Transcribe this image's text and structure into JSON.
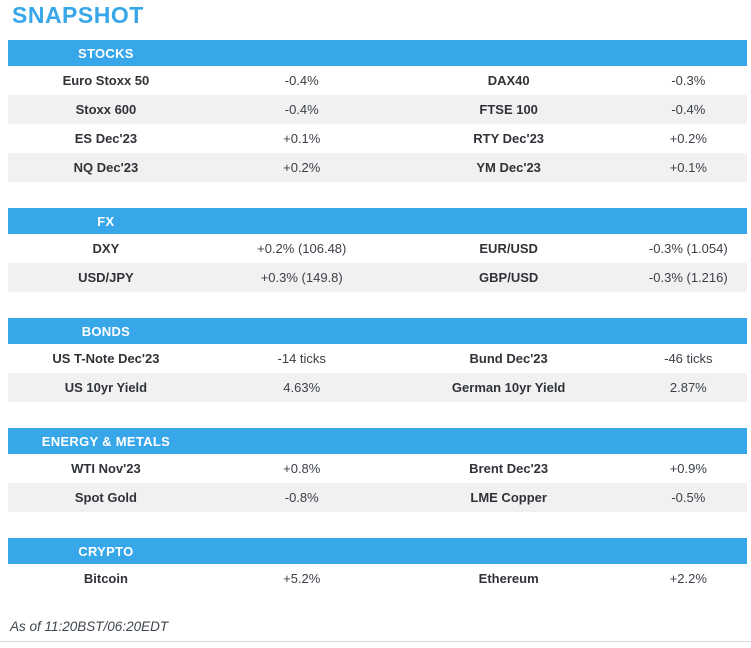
{
  "title": "SNAPSHOT",
  "footer": "As of 11:20BST/06:20EDT",
  "colors": {
    "accent_blue": "#38A7EA",
    "row_alt_gray": "#F1F1F2",
    "header_text": "#FFFFFF",
    "body_text": "#3B4048"
  },
  "sections": [
    {
      "header": "STOCKS",
      "rows": [
        {
          "label1": "Euro Stoxx 50",
          "value1": "-0.4%",
          "label2": "DAX40",
          "value2": "-0.3%"
        },
        {
          "label1": "Stoxx 600",
          "value1": "-0.4%",
          "label2": "FTSE 100",
          "value2": "-0.4%"
        },
        {
          "label1": "ES Dec'23",
          "value1": "+0.1%",
          "label2": "RTY Dec'23",
          "value2": "+0.2%"
        },
        {
          "label1": "NQ Dec'23",
          "value1": "+0.2%",
          "label2": "YM Dec'23",
          "value2": "+0.1%"
        }
      ]
    },
    {
      "header": "FX",
      "rows": [
        {
          "label1": "DXY",
          "value1": "+0.2% (106.48)",
          "label2": "EUR/USD",
          "value2": "-0.3% (1.054)"
        },
        {
          "label1": "USD/JPY",
          "value1": "+0.3% (149.8)",
          "label2": "GBP/USD",
          "value2": "-0.3% (1.216)"
        }
      ]
    },
    {
      "header": "BONDS",
      "rows": [
        {
          "label1": "US T-Note Dec'23",
          "value1": "-14 ticks",
          "label2": "Bund Dec'23",
          "value2": "-46 ticks"
        },
        {
          "label1": "US 10yr Yield",
          "value1": "4.63%",
          "label2": "German 10yr Yield",
          "value2": "2.87%"
        }
      ]
    },
    {
      "header": "ENERGY & METALS",
      "rows": [
        {
          "label1": "WTI Nov'23",
          "value1": "+0.8%",
          "label2": "Brent Dec'23",
          "value2": "+0.9%"
        },
        {
          "label1": "Spot Gold",
          "value1": "-0.8%",
          "label2": "LME Copper",
          "value2": "-0.5%"
        }
      ]
    },
    {
      "header": "CRYPTO",
      "rows": [
        {
          "label1": "Bitcoin",
          "value1": "+5.2%",
          "label2": "Ethereum",
          "value2": "+2.2%"
        }
      ]
    }
  ]
}
